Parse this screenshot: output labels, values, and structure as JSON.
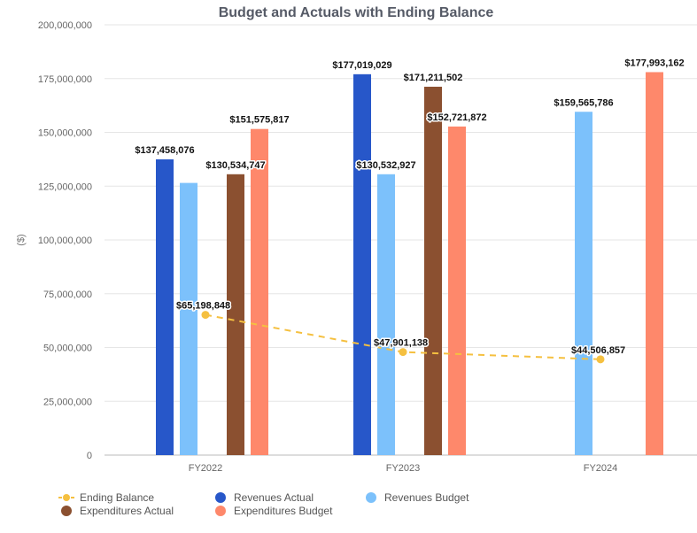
{
  "chart_data": {
    "type": "bar",
    "title": "Budget and Actuals with Ending Balance",
    "ylabel": "($)",
    "xlabel": "",
    "ylim": [
      0,
      200000000
    ],
    "yticks": [
      0,
      25000000,
      50000000,
      75000000,
      100000000,
      125000000,
      150000000,
      175000000,
      200000000
    ],
    "ytick_labels": [
      "0",
      "25,000,000",
      "50,000,000",
      "75,000,000",
      "100,000,000",
      "125,000,000",
      "150,000,000",
      "175,000,000",
      "200,000,000"
    ],
    "categories": [
      "FY2022",
      "FY2023",
      "FY2024"
    ],
    "grid": true,
    "legend_position": "bottom-left",
    "series": [
      {
        "name": "Revenues Actual",
        "kind": "bar",
        "color": "#2757c9",
        "values": [
          137458076,
          177019029,
          null
        ],
        "labels": [
          "$137,458,076",
          "$177,019,029",
          ""
        ]
      },
      {
        "name": "Revenues Budget",
        "kind": "bar",
        "color": "#7cc1fb",
        "values": [
          126500000,
          130532927,
          159565786
        ],
        "labels": [
          "",
          "$130,532,927",
          "$159,565,786"
        ]
      },
      {
        "name": "Expenditures Actual",
        "kind": "bar",
        "color": "#8b5030",
        "values": [
          130534747,
          171211502,
          null
        ],
        "labels": [
          "$130,534,747",
          "$171,211,502",
          ""
        ]
      },
      {
        "name": "Expenditures Budget",
        "kind": "bar",
        "color": "#fe886b",
        "values": [
          151575817,
          152721872,
          177993162
        ],
        "labels": [
          "$151,575,817",
          "$152,721,872",
          "$177,993,162"
        ]
      },
      {
        "name": "Ending Balance",
        "kind": "line",
        "style": "dashed",
        "color": "#f5c040",
        "values": [
          65198848,
          47901138,
          44506857
        ],
        "labels": [
          "$65,198,848",
          "$47,901,138",
          "$44,506,857"
        ]
      }
    ],
    "legend_order": [
      "Ending Balance",
      "Revenues Actual",
      "Revenues Budget",
      "Expenditures Actual",
      "Expenditures Budget"
    ]
  }
}
